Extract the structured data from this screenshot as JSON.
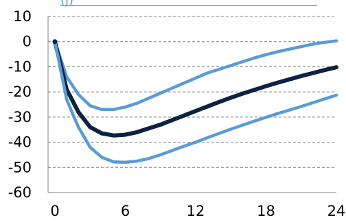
{
  "chart_data": {
    "type": "line",
    "title": "",
    "title_fragment": "(j)",
    "xlabel": "",
    "ylabel": "",
    "x": [
      0,
      1,
      2,
      3,
      4,
      5,
      6,
      7,
      8,
      9,
      10,
      11,
      12,
      13,
      14,
      15,
      16,
      17,
      18,
      19,
      20,
      21,
      22,
      23,
      24
    ],
    "xticks": [
      0,
      6,
      12,
      18,
      24
    ],
    "yticks": [
      10,
      0,
      -10,
      -20,
      -30,
      -40,
      -50,
      -60
    ],
    "xlim": [
      -1,
      24
    ],
    "ylim": [
      -60,
      10
    ],
    "grid": "horizontal-dashed",
    "series": [
      {
        "role": "upper-band",
        "color": "#5B9BD5",
        "values": [
          0,
          -14,
          -21,
          -25.5,
          -27,
          -27,
          -26,
          -24.5,
          -22.5,
          -20.5,
          -18.5,
          -16.5,
          -14.5,
          -12.5,
          -11,
          -9.5,
          -8,
          -6.5,
          -5.2,
          -4,
          -3,
          -2,
          -1,
          -0.3,
          0.3
        ]
      },
      {
        "role": "central",
        "color": "#0D2240",
        "values": [
          0,
          -19,
          -28,
          -34,
          -36.5,
          -37.3,
          -37,
          -36,
          -34.5,
          -33,
          -31.2,
          -29.4,
          -27.6,
          -25.8,
          -24,
          -22.3,
          -20.7,
          -19.2,
          -17.7,
          -16.3,
          -15,
          -13.7,
          -12.5,
          -11.3,
          -10.2
        ]
      },
      {
        "role": "lower-band",
        "color": "#5B9BD5",
        "values": [
          0,
          -23,
          -34,
          -42,
          -46,
          -47.8,
          -48,
          -47.5,
          -46.5,
          -45,
          -43.3,
          -41.6,
          -40,
          -38.2,
          -36.5,
          -34.8,
          -33.2,
          -31.6,
          -30.1,
          -28.6,
          -27.2,
          -25.8,
          -24.3,
          -22.8,
          -21.3
        ]
      }
    ]
  },
  "colors": {
    "band": "#5B9BD5",
    "central": "#0D2240",
    "grid": "#7F7F7F",
    "axis": "#808080"
  }
}
